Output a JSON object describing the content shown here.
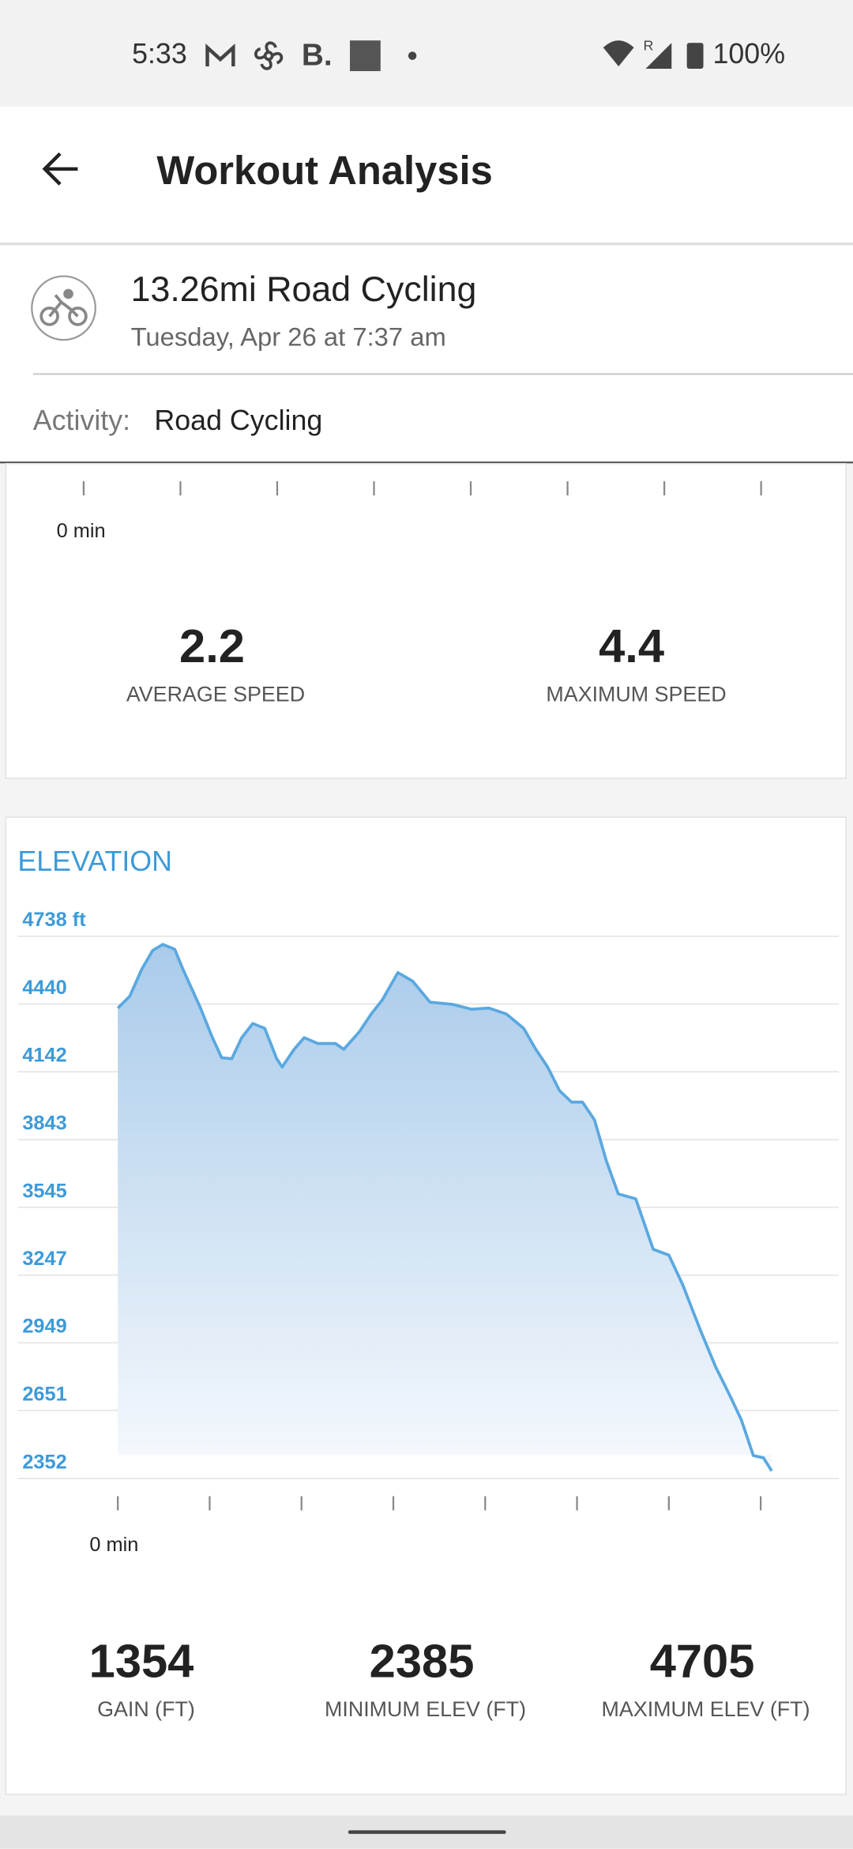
{
  "status_bar": {
    "time": "5:33",
    "app_letter": "B.",
    "roaming": "R",
    "battery": "100%"
  },
  "app_bar": {
    "title": "Workout Analysis"
  },
  "workout": {
    "title": "13.26mi Road Cycling",
    "subtitle": "Tuesday, Apr 26 at 7:37 am",
    "activity_label": "Activity:",
    "activity_value": "Road Cycling"
  },
  "speed_card": {
    "xticks": [
      {
        "value": 0,
        "label": "0 min"
      },
      {
        "value": 1,
        "label": null
      },
      {
        "value": 2,
        "label": null
      },
      {
        "value": 3,
        "label": null
      },
      {
        "value": 4,
        "label": null
      },
      {
        "value": 5,
        "label": null
      },
      {
        "value": 6,
        "label": null
      },
      {
        "value": 7,
        "label": null
      }
    ],
    "stats": [
      {
        "value": 2.2,
        "label": "AVERAGE SPEED"
      },
      {
        "value": 4.4,
        "label": "MAXIMUM SPEED"
      }
    ]
  },
  "chart_data": {
    "type": "area",
    "title": "ELEVATION",
    "color": "#5aa8e0",
    "grid": true,
    "xlim": [
      0,
      7.12
    ],
    "xticks": [
      {
        "value": 0,
        "label": "0 min"
      },
      {
        "value": 1,
        "label": null
      },
      {
        "value": 2,
        "label": null
      },
      {
        "value": 3,
        "label": null
      },
      {
        "value": 4,
        "label": null
      },
      {
        "value": 5,
        "label": null
      },
      {
        "value": 6,
        "label": null
      },
      {
        "value": 7,
        "label": null
      }
    ],
    "ylim": [
      2352,
      4738
    ],
    "yticks": [
      {
        "value": 4738,
        "label": "4738 ft"
      },
      4440,
      4142,
      3843,
      3545,
      3247,
      2949,
      2651,
      2352
    ],
    "x": [
      0,
      0.13,
      0.26,
      0.38,
      0.49,
      0.62,
      0.71,
      0.9,
      1.03,
      1.13,
      1.24,
      1.35,
      1.47,
      1.6,
      1.73,
      1.79,
      1.92,
      2.03,
      2.18,
      2.37,
      2.46,
      2.63,
      2.76,
      2.88,
      3.05,
      3.21,
      3.4,
      3.65,
      3.85,
      4.04,
      4.23,
      4.42,
      4.55,
      4.68,
      4.81,
      4.94,
      5.06,
      5.19,
      5.32,
      5.45,
      5.64,
      5.83,
      6.0,
      6.15,
      6.35,
      6.51,
      6.67,
      6.79,
      6.92,
      7.03,
      7.12
    ],
    "values": [
      4422,
      4474,
      4593,
      4676,
      4702,
      4681,
      4593,
      4422,
      4292,
      4204,
      4199,
      4292,
      4354,
      4333,
      4199,
      4163,
      4241,
      4292,
      4266,
      4266,
      4241,
      4318,
      4396,
      4458,
      4578,
      4541,
      4448,
      4438,
      4417,
      4422,
      4396,
      4333,
      4241,
      4163,
      4059,
      4008,
      4008,
      3930,
      3749,
      3604,
      3583,
      3361,
      3335,
      3205,
      2998,
      2842,
      2713,
      2609,
      2453,
      2443,
      2385
    ]
  },
  "elevation_stats": [
    {
      "value": 1354,
      "label": "GAIN (FT)"
    },
    {
      "value": 2385,
      "label": "MINIMUM ELEV (FT)"
    },
    {
      "value": 4705,
      "label": "MAXIMUM ELEV (FT)"
    }
  ]
}
